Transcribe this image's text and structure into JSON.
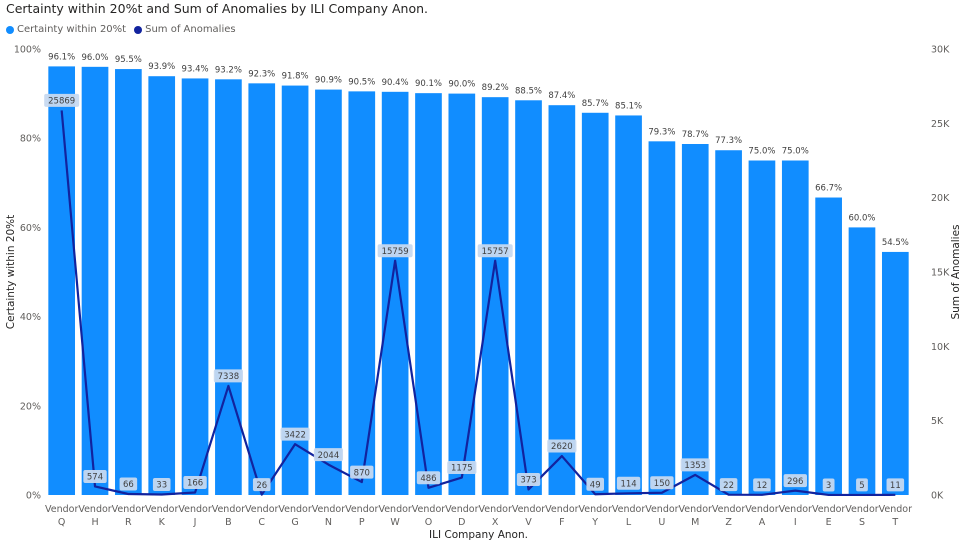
{
  "chart_title": "Certainty within 20%t and Sum of Anomalies by ILI Company Anon.",
  "colors": {
    "bar": "#118dff",
    "line": "#12239e",
    "label_bg": "#c7d9f0",
    "axis_text": "#605e5c",
    "grid": "#e6e6e6"
  },
  "chart_data": {
    "type": "bar",
    "title": "Certainty within 20%t and Sum of Anomalies by ILI Company Anon.",
    "xlabel": "ILI Company Anon.",
    "ylabel": "Certainty within 20%t",
    "y2label": "Sum of Anomalies",
    "ylim": [
      0,
      100
    ],
    "y2lim": [
      0,
      30000
    ],
    "yticks": [
      "0%",
      "20%",
      "40%",
      "60%",
      "80%",
      "100%"
    ],
    "y2ticks": [
      "0K",
      "5K",
      "10K",
      "15K",
      "20K",
      "25K",
      "30K"
    ],
    "legend_position": "top-left",
    "grid": false,
    "category_prefix": "Vendor",
    "categories": [
      "Q",
      "H",
      "R",
      "K",
      "J",
      "B",
      "C",
      "G",
      "N",
      "P",
      "W",
      "O",
      "D",
      "X",
      "V",
      "F",
      "Y",
      "L",
      "U",
      "M",
      "Z",
      "A",
      "I",
      "E",
      "S",
      "T"
    ],
    "series": [
      {
        "name": "Certainty within 20%t",
        "kind": "bar",
        "values": [
          96.1,
          96.0,
          95.5,
          93.9,
          93.4,
          93.2,
          92.3,
          91.8,
          90.9,
          90.5,
          90.4,
          90.1,
          90.0,
          89.2,
          88.5,
          87.4,
          85.7,
          85.1,
          79.3,
          78.7,
          77.3,
          75.0,
          75.0,
          66.7,
          60.0,
          54.5
        ],
        "labels": [
          "96.1%",
          "96.0%",
          "95.5%",
          "93.9%",
          "93.4%",
          "93.2%",
          "92.3%",
          "91.8%",
          "90.9%",
          "90.5%",
          "90.4%",
          "90.1%",
          "90.0%",
          "89.2%",
          "88.5%",
          "87.4%",
          "85.7%",
          "85.1%",
          "79.3%",
          "78.7%",
          "77.3%",
          "75.0%",
          "75.0%",
          "66.7%",
          "60.0%",
          "54.5%"
        ]
      },
      {
        "name": "Sum of Anomalies",
        "kind": "line",
        "axis": "secondary",
        "values": [
          25869,
          574,
          66,
          33,
          166,
          7338,
          26,
          3422,
          2044,
          870,
          15759,
          486,
          1175,
          15757,
          373,
          2620,
          49,
          114,
          150,
          1353,
          22,
          12,
          296,
          3,
          5,
          11
        ],
        "labels": [
          "25869",
          "574",
          "66",
          "33",
          "166",
          "7338",
          "26",
          "3422",
          "2044",
          "870",
          "15759",
          "486",
          "1175",
          "15757",
          "373",
          "2620",
          "49",
          "114",
          "150",
          "1353",
          "22",
          "12",
          "296",
          "3",
          "5",
          "11"
        ]
      }
    ]
  }
}
